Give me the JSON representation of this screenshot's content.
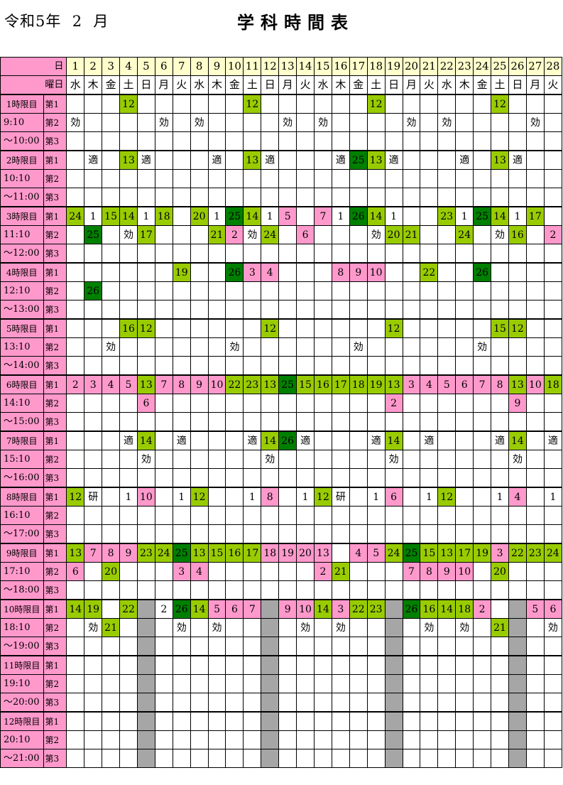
{
  "header": {
    "year_month": "令和5年  2  月",
    "title": "学科時間表"
  },
  "labels": {
    "day_row": "日",
    "weekday_row": "曜日",
    "slots": [
      "第1",
      "第2",
      "第3"
    ]
  },
  "days": [
    "1",
    "2",
    "3",
    "4",
    "5",
    "6",
    "7",
    "8",
    "9",
    "10",
    "11",
    "12",
    "13",
    "14",
    "15",
    "16",
    "17",
    "18",
    "19",
    "20",
    "21",
    "22",
    "23",
    "24",
    "25",
    "26",
    "27",
    "28"
  ],
  "weekdays": [
    "水",
    "木",
    "金",
    "土",
    "日",
    "月",
    "火",
    "水",
    "木",
    "金",
    "土",
    "日",
    "月",
    "火",
    "水",
    "木",
    "金",
    "土",
    "日",
    "月",
    "火",
    "水",
    "木",
    "金",
    "土",
    "日",
    "月",
    "火"
  ],
  "colors": {
    "pink": "#ff99cc",
    "green": "#99cc00",
    "dark_green": "#008000",
    "gray": "#a6a6a6",
    "cream": "#ffffcc"
  },
  "periods": [
    {
      "label": "1時限目",
      "start": "9:10",
      "end": "～10:00",
      "rows": [
        [
          "",
          "",
          "",
          "12:g",
          "",
          "",
          "",
          "",
          "",
          "",
          "12:g",
          "",
          "",
          "",
          "",
          "",
          "",
          "12:g",
          "",
          "",
          "",
          "",
          "",
          "",
          "12:g",
          "",
          "",
          ""
        ],
        [
          "効",
          "",
          "",
          "",
          "",
          "効",
          "",
          "効",
          "",
          "",
          "",
          "",
          "効",
          "",
          "効",
          "",
          "",
          "",
          "",
          "効",
          "",
          "効",
          "",
          "",
          "",
          "",
          "効",
          ""
        ],
        [
          "",
          "",
          "",
          "",
          "",
          "",
          "",
          "",
          "",
          "",
          "",
          "",
          "",
          "",
          "",
          "",
          "",
          "",
          "",
          "",
          "",
          "",
          "",
          "",
          "",
          "",
          "",
          ""
        ]
      ]
    },
    {
      "label": "2時限目",
      "start": "10:10",
      "end": "～11:00",
      "rows": [
        [
          "",
          "適",
          "",
          "13:g",
          "適",
          "",
          "",
          "",
          "適",
          "",
          "13:g",
          "適",
          "",
          "",
          "",
          "適",
          "25:d",
          "13:g",
          "適",
          "",
          "",
          "",
          "適",
          "",
          "13:g",
          "適",
          "",
          ""
        ],
        [
          "",
          "",
          "",
          "",
          "",
          "",
          "",
          "",
          "",
          "",
          "",
          "",
          "",
          "",
          "",
          "",
          "",
          "",
          "",
          "",
          "",
          "",
          "",
          "",
          "",
          "",
          "",
          ""
        ],
        [
          "",
          "",
          "",
          "",
          "",
          "",
          "",
          "",
          "",
          "",
          "",
          "",
          "",
          "",
          "",
          "",
          "",
          "",
          "",
          "",
          "",
          "",
          "",
          "",
          "",
          "",
          "",
          ""
        ]
      ]
    },
    {
      "label": "3時限目",
      "start": "11:10",
      "end": "～12:00",
      "rows": [
        [
          "24:g",
          "1",
          "15:g",
          "14:g",
          "1",
          "18:g",
          "",
          "20:g",
          "1",
          "25:d",
          "14:g",
          "1",
          "5:p",
          "",
          "7:p",
          "1",
          "26:d",
          "14:g",
          "1",
          "",
          "",
          "23:g",
          "1",
          "25:d",
          "14:g",
          "1",
          "17:g",
          ""
        ],
        [
          "",
          "25:d",
          "",
          "効",
          "17:g",
          "",
          "",
          "",
          "21:g",
          "2:p",
          "効",
          "24:g",
          "",
          "6:p",
          "",
          "",
          "",
          "効",
          "20:g",
          "21:g",
          "",
          "",
          "24:g",
          "",
          "効",
          "16:g",
          "",
          "2:p"
        ],
        [
          "",
          "",
          "",
          "",
          "",
          "",
          "",
          "",
          "",
          "",
          "",
          "",
          "",
          "",
          "",
          "",
          "",
          "",
          "",
          "",
          "",
          "",
          "",
          "",
          "",
          "",
          "",
          ""
        ]
      ]
    },
    {
      "label": "4時限目",
      "start": "12:10",
      "end": "～13:00",
      "rows": [
        [
          "",
          "",
          "",
          "",
          "",
          "",
          "19:g",
          "",
          "",
          "26:d",
          "3:p",
          "4:p",
          "",
          "",
          "",
          "8:p",
          "9:p",
          "10:p",
          "",
          "",
          "22:g",
          "",
          "",
          "26:d",
          "",
          "",
          "",
          ""
        ],
        [
          "",
          "26:d",
          "",
          "",
          "",
          "",
          "",
          "",
          "",
          "",
          "",
          "",
          "",
          "",
          "",
          "",
          "",
          "",
          "",
          "",
          "",
          "",
          "",
          "",
          "",
          "",
          "",
          ""
        ],
        [
          "",
          "",
          "",
          "",
          "",
          "",
          "",
          "",
          "",
          "",
          "",
          "",
          "",
          "",
          "",
          "",
          "",
          "",
          "",
          "",
          "",
          "",
          "",
          "",
          "",
          "",
          "",
          ""
        ]
      ]
    },
    {
      "label": "5時限目",
      "start": "13:10",
      "end": "～14:00",
      "rows": [
        [
          "",
          "",
          "",
          "16:g",
          "12:g",
          "",
          "",
          "",
          "",
          "",
          "",
          "12:g",
          "",
          "",
          "",
          "",
          "",
          "",
          "12:g",
          "",
          "",
          "",
          "",
          "",
          "15:g",
          "12:g",
          "",
          ""
        ],
        [
          "",
          "",
          "効",
          "",
          "",
          "",
          "",
          "",
          "",
          "効",
          "",
          "",
          "",
          "",
          "",
          "",
          "効",
          "",
          "",
          "",
          "",
          "",
          "",
          "効",
          "",
          "",
          "",
          ""
        ],
        [
          "",
          "",
          "",
          "",
          "",
          "",
          "",
          "",
          "",
          "",
          "",
          "",
          "",
          "",
          "",
          "",
          "",
          "",
          "",
          "",
          "",
          "",
          "",
          "",
          "",
          "",
          "",
          ""
        ]
      ]
    },
    {
      "label": "6時限目",
      "start": "14:10",
      "end": "～15:00",
      "rows": [
        [
          "2:p",
          "3:p",
          "4:p",
          "5:p",
          "13:g",
          "7:p",
          "8:p",
          "9:p",
          "10:p",
          "22:g",
          "23:g",
          "13:g",
          "25:d",
          "15:g",
          "16:g",
          "17:g",
          "18:g",
          "19:g",
          "13:g",
          "3:p",
          "4:p",
          "5:p",
          "6:p",
          "7:p",
          "8:p",
          "13:g",
          "10:p",
          "18:g"
        ],
        [
          "",
          "",
          "",
          "",
          "6:p",
          "",
          "",
          "",
          "",
          "",
          "",
          "",
          "",
          "",
          "",
          "",
          "",
          "",
          "2:p",
          "",
          "",
          "",
          "",
          "",
          "",
          "9:p",
          "",
          ""
        ],
        [
          "",
          "",
          "",
          "",
          "",
          "",
          "",
          "",
          "",
          "",
          "",
          "",
          "",
          "",
          "",
          "",
          "",
          "",
          "",
          "",
          "",
          "",
          "",
          "",
          "",
          "",
          "",
          ""
        ]
      ]
    },
    {
      "label": "7時限目",
      "start": "15:10",
      "end": "～16:00",
      "rows": [
        [
          "",
          "",
          "",
          "適",
          "14:g",
          "",
          "適",
          "",
          "",
          "",
          "適",
          "14:g",
          "26:d",
          "適",
          "",
          "",
          "",
          "適",
          "14:g",
          "",
          "適",
          "",
          "",
          "",
          "適",
          "14:g",
          "",
          "適"
        ],
        [
          "",
          "",
          "",
          "",
          "効",
          "",
          "",
          "",
          "",
          "",
          "",
          "効",
          "",
          "",
          "",
          "",
          "",
          "",
          "効",
          "",
          "",
          "",
          "",
          "",
          "",
          "効",
          "",
          ""
        ],
        [
          "",
          "",
          "",
          "",
          "",
          "",
          "",
          "",
          "",
          "",
          "",
          "",
          "",
          "",
          "",
          "",
          "",
          "",
          "",
          "",
          "",
          "",
          "",
          "",
          "",
          "",
          "",
          ""
        ]
      ]
    },
    {
      "label": "8時限目",
      "start": "16:10",
      "end": "～17:00",
      "rows": [
        [
          "12:g",
          "研",
          "",
          "1",
          "10:p",
          "",
          "1",
          "12:g",
          "",
          "",
          "1",
          "8:p",
          "",
          "1",
          "12:g",
          "研",
          "",
          "1",
          "6:p",
          "",
          "1",
          "12:g",
          "",
          "",
          "1",
          "4:p",
          "",
          "1"
        ],
        [
          "",
          "",
          "",
          "",
          "",
          "",
          "",
          "",
          "",
          "",
          "",
          "",
          "",
          "",
          "",
          "",
          "",
          "",
          "",
          "",
          "",
          "",
          "",
          "",
          "",
          "",
          "",
          ""
        ],
        [
          "",
          "",
          "",
          "",
          "",
          "",
          "",
          "",
          "",
          "",
          "",
          "",
          "",
          "",
          "",
          "",
          "",
          "",
          "",
          "",
          "",
          "",
          "",
          "",
          "",
          "",
          "",
          ""
        ]
      ]
    },
    {
      "label": "9時限目",
      "start": "17:10",
      "end": "～18:00",
      "rows": [
        [
          "13:g",
          "7:p",
          "8:p",
          "9:p",
          "23:g",
          "24:g",
          "25:d",
          "13:g",
          "15:g",
          "16:g",
          "17:g",
          "18:p",
          "19:p",
          "20:p",
          "13:p",
          "",
          "4:p",
          "5:p",
          "24:g",
          "25:d",
          "15:g",
          "13:g",
          "17:g",
          "19:g",
          "3:p",
          "22:g",
          "23:g",
          "24:g"
        ],
        [
          "6:p",
          "",
          "20:g",
          "",
          "",
          "",
          "3:p",
          "4:p",
          "",
          "",
          "",
          "",
          "",
          "",
          "2:p",
          "21:g",
          "",
          "",
          "",
          "7:p",
          "8:p",
          "9:p",
          "10:p",
          "",
          "20:g",
          "",
          "",
          ""
        ],
        [
          "",
          "",
          "",
          "",
          "",
          "",
          "",
          "",
          "",
          "",
          "",
          "",
          "",
          "",
          "",
          "",
          "",
          "",
          "",
          "",
          "",
          "",
          "",
          "",
          "",
          "",
          "",
          ""
        ]
      ]
    },
    {
      "label": "10時限目",
      "start": "18:10",
      "end": "～19:00",
      "rows": [
        [
          "14:g",
          "19:g",
          "",
          "22:g",
          "",
          "2",
          "26:d",
          "14:g",
          "5:p",
          "6:p",
          "7:p",
          "",
          "9:p",
          "10:p",
          "14:g",
          "3:p",
          "22:g",
          "23:g",
          "",
          "26:d",
          "16:g",
          "14:g",
          "18:g",
          "2:p",
          "",
          "",
          "5:p",
          "6:p"
        ],
        [
          "",
          "効",
          "21:g",
          "",
          "",
          "",
          "効",
          "",
          "効",
          "",
          "",
          "",
          "",
          "効",
          "",
          "効",
          "",
          "",
          "",
          "",
          "効",
          "",
          "効",
          "",
          "21:g",
          "",
          "",
          "効"
        ],
        [
          "",
          "",
          "",
          "",
          "",
          "",
          "",
          "",
          "",
          "",
          "",
          "",
          "",
          "",
          "",
          "",
          "",
          "",
          "",
          "",
          "",
          "",
          "",
          "",
          "",
          "",
          "",
          ""
        ]
      ]
    },
    {
      "label": "11時限目",
      "start": "19:10",
      "end": "～20:00",
      "rows": [
        [
          "",
          "",
          "",
          "",
          "",
          "",
          "",
          "",
          "",
          "",
          "",
          "",
          "",
          "",
          "",
          "",
          "",
          "",
          "",
          "",
          "",
          "",
          "",
          "",
          "",
          "",
          "",
          ""
        ],
        [
          "",
          "",
          "",
          "",
          "",
          "",
          "",
          "",
          "",
          "",
          "",
          "",
          "",
          "",
          "",
          "",
          "",
          "",
          "",
          "",
          "",
          "",
          "",
          "",
          "",
          "",
          "",
          ""
        ],
        [
          "",
          "",
          "",
          "",
          "",
          "",
          "",
          "",
          "",
          "",
          "",
          "",
          "",
          "",
          "",
          "",
          "",
          "",
          "",
          "",
          "",
          "",
          "",
          "",
          "",
          "",
          "",
          ""
        ]
      ]
    },
    {
      "label": "12時限目",
      "start": "20:10",
      "end": "～21:00",
      "rows": [
        [
          "",
          "",
          "",
          "",
          "",
          "",
          "",
          "",
          "",
          "",
          "",
          "",
          "",
          "",
          "",
          "",
          "",
          "",
          "",
          "",
          "",
          "",
          "",
          "",
          "",
          "",
          "",
          ""
        ],
        [
          "",
          "",
          "",
          "",
          "",
          "",
          "",
          "",
          "",
          "",
          "",
          "",
          "",
          "",
          "",
          "",
          "",
          "",
          "",
          "",
          "",
          "",
          "",
          "",
          "",
          "",
          "",
          ""
        ],
        [
          "",
          "",
          "",
          "",
          "",
          "",
          "",
          "",
          "",
          "",
          "",
          "",
          "",
          "",
          "",
          "",
          "",
          "",
          "",
          "",
          "",
          "",
          "",
          "",
          "",
          "",
          "",
          ""
        ]
      ]
    }
  ],
  "sunday_gray_from_period": 10
}
